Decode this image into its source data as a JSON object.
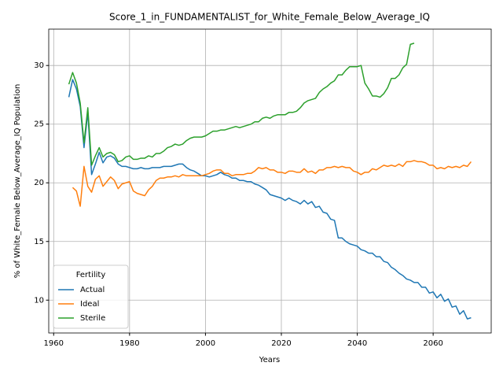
{
  "chart_data": {
    "type": "line",
    "title": "Score_1_in_FUNDAMENTALIST_for_White_Female_Below_Average_IQ",
    "x_label": "Years",
    "y_label": "% of White_Female Below_Average_IQ Population",
    "legend_title": "Fertility",
    "legend_position": "lower left",
    "grid": true,
    "xlim": [
      1958.7,
      2075.3
    ],
    "ylim": [
      7.2,
      33.1
    ],
    "xticks": [
      1960,
      1980,
      2000,
      2020,
      2040,
      2060
    ],
    "yticks": [
      10,
      15,
      20,
      25,
      30
    ],
    "x": [
      1964,
      1965,
      1966,
      1967,
      1968,
      1969,
      1970,
      1971,
      1972,
      1973,
      1974,
      1975,
      1976,
      1977,
      1978,
      1979,
      1980,
      1981,
      1982,
      1983,
      1984,
      1985,
      1986,
      1987,
      1988,
      1989,
      1990,
      1991,
      1992,
      1993,
      1994,
      1995,
      1996,
      1997,
      1998,
      1999,
      2000,
      2001,
      2002,
      2003,
      2004,
      2005,
      2006,
      2007,
      2008,
      2009,
      2010,
      2011,
      2012,
      2013,
      2014,
      2015,
      2016,
      2017,
      2018,
      2019,
      2020,
      2021,
      2022,
      2023,
      2024,
      2025,
      2026,
      2027,
      2028,
      2029,
      2030,
      2031,
      2032,
      2033,
      2034,
      2035,
      2036,
      2037,
      2038,
      2039,
      2040,
      2041,
      2042,
      2043,
      2044,
      2045,
      2046,
      2047,
      2048,
      2049,
      2050,
      2051,
      2052,
      2053,
      2054,
      2055,
      2056,
      2057,
      2058,
      2059,
      2060,
      2061,
      2062,
      2063,
      2064,
      2065,
      2066,
      2067,
      2068,
      2069,
      2070
    ],
    "series": [
      {
        "name": "Actual",
        "color": "#1f77b4",
        "values": [
          27.3,
          28.8,
          28.0,
          26.5,
          23.0,
          26.0,
          20.7,
          21.6,
          22.6,
          21.7,
          22.2,
          22.3,
          22.1,
          21.6,
          21.4,
          21.4,
          21.3,
          21.2,
          21.2,
          21.3,
          21.2,
          21.2,
          21.3,
          21.3,
          21.3,
          21.4,
          21.4,
          21.4,
          21.5,
          21.6,
          21.6,
          21.3,
          21.1,
          21.0,
          20.8,
          20.6,
          20.6,
          20.5,
          20.6,
          20.7,
          20.9,
          20.7,
          20.6,
          20.4,
          20.4,
          20.2,
          20.2,
          20.1,
          20.1,
          19.9,
          19.8,
          19.6,
          19.4,
          19.0,
          18.9,
          18.8,
          18.7,
          18.5,
          18.7,
          18.5,
          18.4,
          18.2,
          18.5,
          18.2,
          18.4,
          17.9,
          18.0,
          17.5,
          17.4,
          16.9,
          16.8,
          15.3,
          15.3,
          15.0,
          14.8,
          14.7,
          14.6,
          14.3,
          14.2,
          14.0,
          14.0,
          13.7,
          13.7,
          13.3,
          13.2,
          12.8,
          12.6,
          12.3,
          12.1,
          11.8,
          11.7,
          11.5,
          11.5,
          11.1,
          11.1,
          10.6,
          10.7,
          10.2,
          10.5,
          9.9,
          10.1,
          9.4,
          9.5,
          8.8,
          9.1,
          8.4,
          8.5
        ]
      },
      {
        "name": "Ideal",
        "color": "#ff7f0e",
        "values": [
          null,
          19.6,
          19.3,
          18.0,
          21.4,
          19.7,
          19.2,
          20.3,
          20.6,
          19.7,
          20.1,
          20.5,
          20.2,
          19.5,
          19.9,
          20.0,
          20.1,
          19.3,
          19.1,
          19.0,
          18.9,
          19.4,
          19.7,
          20.2,
          20.4,
          20.4,
          20.5,
          20.5,
          20.6,
          20.5,
          20.7,
          20.6,
          20.6,
          20.6,
          20.6,
          20.6,
          20.7,
          20.8,
          21.0,
          21.1,
          21.1,
          20.8,
          20.8,
          20.6,
          20.7,
          20.7,
          20.7,
          20.8,
          20.8,
          21.0,
          21.3,
          21.2,
          21.3,
          21.1,
          21.1,
          20.9,
          20.9,
          20.8,
          21.0,
          21.0,
          20.9,
          20.9,
          21.2,
          20.9,
          21.0,
          20.8,
          21.1,
          21.1,
          21.3,
          21.3,
          21.4,
          21.3,
          21.4,
          21.3,
          21.3,
          21.0,
          20.9,
          20.7,
          20.9,
          20.9,
          21.2,
          21.1,
          21.3,
          21.5,
          21.4,
          21.5,
          21.4,
          21.6,
          21.4,
          21.8,
          21.8,
          21.9,
          21.8,
          21.8,
          21.7,
          21.5,
          21.5,
          21.2,
          21.3,
          21.2,
          21.4,
          21.3,
          21.4,
          21.3,
          21.5,
          21.4,
          21.8
        ]
      },
      {
        "name": "Sterile",
        "color": "#2ca02c",
        "values": [
          28.4,
          29.4,
          28.5,
          26.8,
          23.4,
          26.4,
          21.5,
          22.3,
          23.0,
          22.2,
          22.5,
          22.6,
          22.4,
          21.8,
          21.9,
          22.2,
          22.3,
          22.0,
          22.0,
          22.1,
          22.1,
          22.3,
          22.2,
          22.5,
          22.5,
          22.7,
          23.0,
          23.1,
          23.3,
          23.2,
          23.3,
          23.6,
          23.8,
          23.9,
          23.9,
          23.9,
          24.0,
          24.2,
          24.4,
          24.4,
          24.5,
          24.5,
          24.6,
          24.7,
          24.8,
          24.7,
          24.8,
          24.9,
          25.0,
          25.2,
          25.2,
          25.5,
          25.6,
          25.5,
          25.7,
          25.8,
          25.8,
          25.8,
          26.0,
          26.0,
          26.1,
          26.4,
          26.8,
          27.0,
          27.1,
          27.2,
          27.7,
          28.0,
          28.2,
          28.5,
          28.7,
          29.2,
          29.2,
          29.6,
          29.9,
          29.9,
          29.9,
          30.0,
          28.5,
          28.0,
          27.4,
          27.4,
          27.3,
          27.6,
          28.1,
          28.9,
          28.9,
          29.2,
          29.8,
          30.1,
          31.8,
          31.9,
          null,
          null,
          null,
          null,
          null,
          null,
          null,
          null,
          null,
          null,
          null,
          null,
          null,
          null,
          null
        ]
      }
    ]
  }
}
